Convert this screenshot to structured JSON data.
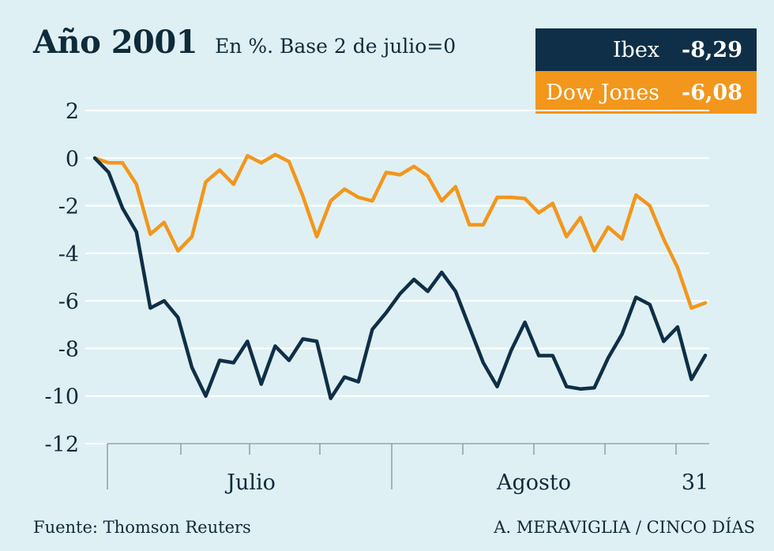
{
  "header": {
    "title": "Año 2001",
    "subtitle": "En %. Base 2 de julio=0"
  },
  "legend": [
    {
      "name": "Ibex",
      "value": "-8,29",
      "color": "#0e2f47"
    },
    {
      "name": "Dow Jones",
      "value": "-6,08",
      "color": "#f3961c"
    }
  ],
  "footer": {
    "source": "Fuente: Thomson Reuters",
    "credit": "A. MERAVIGLIA / CINCO DÍAS"
  },
  "chart_data": {
    "type": "line",
    "ylim": [
      -12,
      2
    ],
    "yticks": [
      2,
      0,
      -2,
      -4,
      -6,
      -8,
      -10,
      -12
    ],
    "ytick_labels": [
      "2",
      "0",
      "-2",
      "-4",
      "-6",
      "-8",
      "-10",
      "-12"
    ],
    "grid": true,
    "xlabels": [
      "Julio",
      "Agosto",
      "31"
    ],
    "series": [
      {
        "name": "Ibex",
        "color": "#0e2f47",
        "values": [
          0,
          -0.6,
          -2.1,
          -3.1,
          -6.3,
          -6.0,
          -6.7,
          -8.8,
          -10.0,
          -8.5,
          -8.6,
          -7.7,
          -9.5,
          -7.9,
          -8.5,
          -7.6,
          -7.7,
          -10.1,
          -9.2,
          -9.4,
          -7.2,
          -6.5,
          -5.7,
          -5.1,
          -5.6,
          -4.8,
          -5.6,
          -7.1,
          -8.6,
          -9.6,
          -8.1,
          -6.9,
          -8.3,
          -8.3,
          -9.6,
          -9.7,
          -9.65,
          -8.4,
          -7.4,
          -5.85,
          -6.15,
          -7.7,
          -7.1,
          -9.3,
          -8.29
        ]
      },
      {
        "name": "Dow Jones",
        "color": "#f3961c",
        "values": [
          0,
          -0.2,
          -0.2,
          -1.1,
          -3.2,
          -2.7,
          -3.9,
          -3.3,
          -1.0,
          -0.5,
          -1.1,
          0.1,
          -0.2,
          0.15,
          -0.15,
          -1.6,
          -3.3,
          -1.8,
          -1.3,
          -1.65,
          -1.8,
          -0.6,
          -0.7,
          -0.35,
          -0.75,
          -1.8,
          -1.2,
          -2.8,
          -2.8,
          -1.65,
          -1.65,
          -1.7,
          -2.3,
          -1.9,
          -3.3,
          -2.5,
          -3.9,
          -2.9,
          -3.4,
          -1.55,
          -2.0,
          -3.4,
          -4.6,
          -6.3,
          -6.08
        ]
      }
    ]
  }
}
